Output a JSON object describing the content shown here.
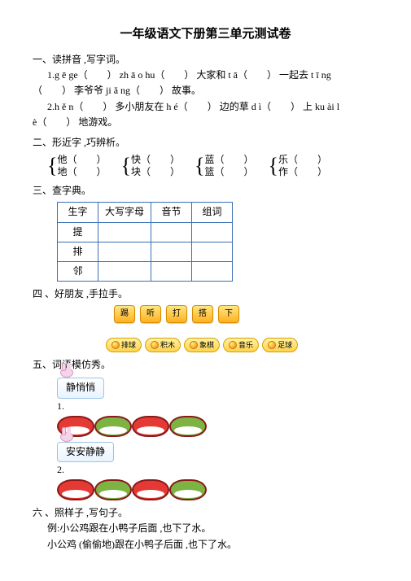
{
  "title": "一年级语文下册第三单元测试卷",
  "s1": {
    "h": "一、读拼音 ,写字词。",
    "l1a": "1.g ē ge（",
    "l1b": "） zh ā o hu（",
    "l1c": "） 大家和 t ā（",
    "l1d": "） 一起去 t ī ng",
    "l2a": "（",
    "l2b": "） 李爷爷 ji ǎ ng（",
    "l2c": "） 故事。",
    "l3a": "2.h ě n（",
    "l3b": "） 多小朋友在 h é（",
    "l3c": "） 边的草 d ì（",
    "l3d": "） 上 ku ài l",
    "l4a": "è（",
    "l4b": "） 地游戏。"
  },
  "s2": {
    "h": "二、形近字 ,巧辨析。",
    "pairs": [
      [
        "他（",
        "地（"
      ],
      [
        "快（",
        "块（"
      ],
      [
        "蓝（",
        "篮（"
      ],
      [
        "乐（",
        "作（"
      ]
    ],
    "close": "）"
  },
  "s3": {
    "h": "三、查字典。",
    "cols": [
      "生字",
      "大写字母",
      "音节",
      "组词"
    ],
    "rows": [
      "提",
      "排",
      "邻"
    ]
  },
  "s4": {
    "h": "四 、好朋友 ,手拉手。",
    "btns": [
      "踢",
      "听",
      "打",
      "搭",
      "下"
    ],
    "chips": [
      "排球",
      "积木",
      "象棋",
      "音乐",
      "足球"
    ]
  },
  "s5": {
    "h": "五、词语模仿秀。",
    "label1": "静悄悄",
    "label2": "安安静静",
    "n1": "1.",
    "n2": "2."
  },
  "s6": {
    "h": "六 、照样子 ,写句子。",
    "ex": "例:小公鸡跟在小鸭子后面 ,也下了水。",
    "line": "小公鸡 (偷偷地)跟在小鸭子后面 ,也下了水。"
  },
  "colors": {
    "loz": [
      "#e53935",
      "#7cb342",
      "#e53935",
      "#7cb342"
    ]
  }
}
